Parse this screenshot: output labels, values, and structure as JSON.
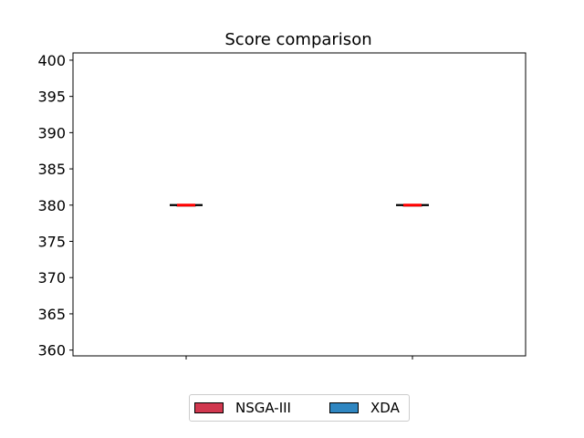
{
  "chart_data": {
    "type": "boxplot",
    "title": "Score comparison",
    "xlabel": "",
    "ylabel": "",
    "ylim": [
      359.2,
      401.0
    ],
    "yticks": [
      360,
      365,
      370,
      375,
      380,
      385,
      390,
      395,
      400
    ],
    "series": [
      {
        "name": "NSGA-III",
        "color": "#d1384f",
        "min": 380,
        "q1": 380,
        "median": 380,
        "q3": 380,
        "max": 380
      },
      {
        "name": "XDA",
        "color": "#2f86c1",
        "min": 380,
        "q1": 380,
        "median": 380,
        "q3": 380,
        "max": 380
      }
    ],
    "median_color": "#ff0000",
    "legend_position": "below",
    "grid": false
  }
}
